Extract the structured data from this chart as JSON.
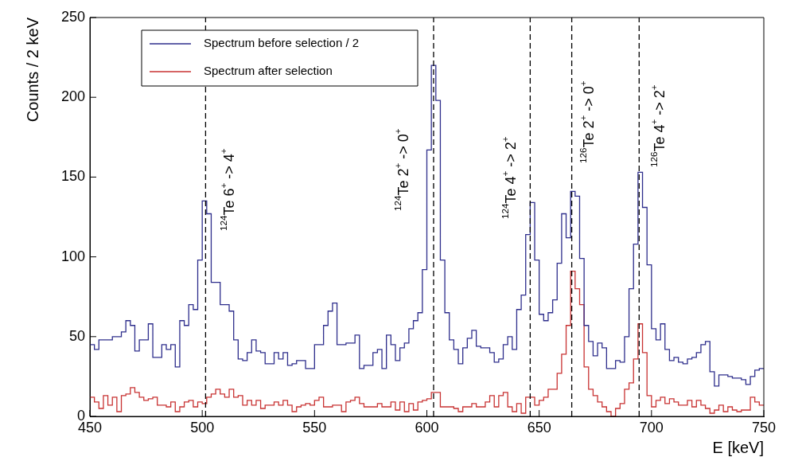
{
  "chart_data": {
    "type": "histogram",
    "xlabel": "E [keV]",
    "ylabel": "Counts / 2 keV",
    "bins": [
      450,
      452,
      454,
      456,
      458,
      460,
      462,
      464,
      466,
      468,
      470,
      472,
      474,
      476,
      478,
      480,
      482,
      484,
      486,
      488,
      490,
      492,
      494,
      496,
      498,
      500,
      502,
      504,
      506,
      508,
      510,
      512,
      514,
      516,
      518,
      520,
      522,
      524,
      526,
      528,
      530,
      532,
      534,
      536,
      538,
      540,
      542,
      544,
      546,
      548,
      550,
      552,
      554,
      556,
      558,
      560,
      562,
      564,
      566,
      568,
      570,
      572,
      574,
      576,
      578,
      580,
      582,
      584,
      586,
      588,
      590,
      592,
      594,
      596,
      598,
      600,
      602,
      604,
      606,
      608,
      610,
      612,
      614,
      616,
      618,
      620,
      622,
      624,
      626,
      628,
      630,
      632,
      634,
      636,
      638,
      640,
      642,
      644,
      646,
      648,
      650,
      652,
      654,
      656,
      658,
      660,
      662,
      664,
      666,
      668,
      670,
      672,
      674,
      676,
      678,
      680,
      682,
      684,
      686,
      688,
      690,
      692,
      694,
      696,
      698,
      700,
      702,
      704,
      706,
      708,
      710,
      712,
      714,
      716,
      718,
      720,
      722,
      724,
      726,
      728,
      730,
      732,
      734,
      736,
      738,
      740,
      742,
      744,
      746,
      748,
      750
    ],
    "series": [
      {
        "name": "Spectrum before selection / 2",
        "color": "#2e2e8c",
        "values": [
          45,
          42,
          48,
          48,
          48,
          50,
          50,
          53,
          60,
          57,
          41,
          48,
          48,
          58,
          37,
          37,
          45,
          42,
          45,
          31,
          60,
          57,
          70,
          67,
          98,
          135,
          127,
          84,
          84,
          70,
          70,
          66,
          48,
          36,
          35,
          40,
          48,
          41,
          40,
          33,
          33,
          40,
          36,
          40,
          32,
          33,
          35,
          35,
          30,
          30,
          45,
          45,
          57,
          66,
          71,
          45,
          45,
          46,
          46,
          51,
          30,
          32,
          32,
          40,
          42,
          30,
          51,
          45,
          35,
          43,
          46,
          55,
          60,
          65,
          92,
          167,
          220,
          198,
          98,
          65,
          48,
          42,
          33,
          43,
          49,
          54,
          44,
          43,
          43,
          40,
          34,
          36,
          45,
          50,
          42,
          67,
          76,
          114,
          134,
          98,
          64,
          60,
          65,
          73,
          96,
          127,
          112,
          141,
          138,
          99,
          57,
          47,
          38,
          46,
          43,
          30,
          30,
          35,
          34,
          50,
          80,
          108,
          153,
          131,
          95,
          55,
          48,
          58,
          42,
          35,
          37,
          34,
          33,
          36,
          37,
          40,
          45,
          47,
          28,
          19,
          26,
          26,
          25,
          24,
          24,
          23,
          20,
          25,
          29,
          30
        ]
      },
      {
        "name": "Spectrum after selection",
        "color": "#c83232",
        "values": [
          12,
          9,
          5,
          13,
          7,
          12,
          3,
          13,
          14,
          18,
          15,
          12,
          10,
          11,
          12,
          7,
          7,
          6,
          9,
          3,
          6,
          9,
          10,
          6,
          9,
          8,
          12,
          14,
          17,
          14,
          12,
          17,
          12,
          13,
          7,
          10,
          7,
          10,
          5,
          7,
          7,
          9,
          7,
          10,
          7,
          3,
          6,
          7,
          8,
          7,
          10,
          12,
          6,
          6,
          7,
          7,
          3,
          9,
          10,
          12,
          8,
          6,
          6,
          6,
          8,
          6,
          6,
          9,
          4,
          9,
          3,
          8,
          4,
          9,
          10,
          11,
          15,
          15,
          6,
          6,
          6,
          5,
          3,
          6,
          6,
          8,
          6,
          6,
          9,
          13,
          6,
          13,
          15,
          6,
          3,
          8,
          2,
          12,
          12,
          7,
          10,
          12,
          17,
          17,
          27,
          39,
          57,
          91,
          80,
          70,
          31,
          17,
          13,
          9,
          6,
          3,
          0,
          5,
          8,
          17,
          21,
          36,
          58,
          40,
          13,
          6,
          10,
          12,
          8,
          11,
          9,
          7,
          7,
          10,
          6,
          10,
          7,
          5,
          2,
          4,
          7,
          3,
          6,
          4,
          3,
          4,
          4,
          12,
          9,
          7
        ]
      }
    ],
    "xlim": [
      450,
      750
    ],
    "xticks": [
      450,
      500,
      550,
      600,
      650,
      700,
      750
    ],
    "ylim": [
      0,
      250
    ],
    "yticks": [
      0,
      50,
      100,
      150,
      200,
      250
    ],
    "grid": false,
    "legend": "top left",
    "ref_lines": [
      {
        "axis": "x",
        "value": 501.5,
        "color": "#000000",
        "line_style": "dashed"
      },
      {
        "axis": "x",
        "value": 603,
        "color": "#000000",
        "line_style": "dashed"
      },
      {
        "axis": "x",
        "value": 646,
        "color": "#000000",
        "line_style": "dashed"
      },
      {
        "axis": "x",
        "value": 664.5,
        "color": "#000000",
        "line_style": "dashed"
      },
      {
        "axis": "x",
        "value": 694.5,
        "color": "#000000",
        "line_style": "dashed"
      }
    ],
    "annotations": [
      "$^{124}$Te 6$^{+}$ -> 4$^{+}$",
      "$^{124}$Te 2$^{+}$ -> 0$^{+}$",
      "$^{124}$Te 4$^{+}$ -> 2$^{+}$",
      "$^{126}$Te 2$^{+}$ -> 0$^{+}$",
      "$^{126}$Te 4$^{+}$ -> 2$^{+}$"
    ]
  }
}
